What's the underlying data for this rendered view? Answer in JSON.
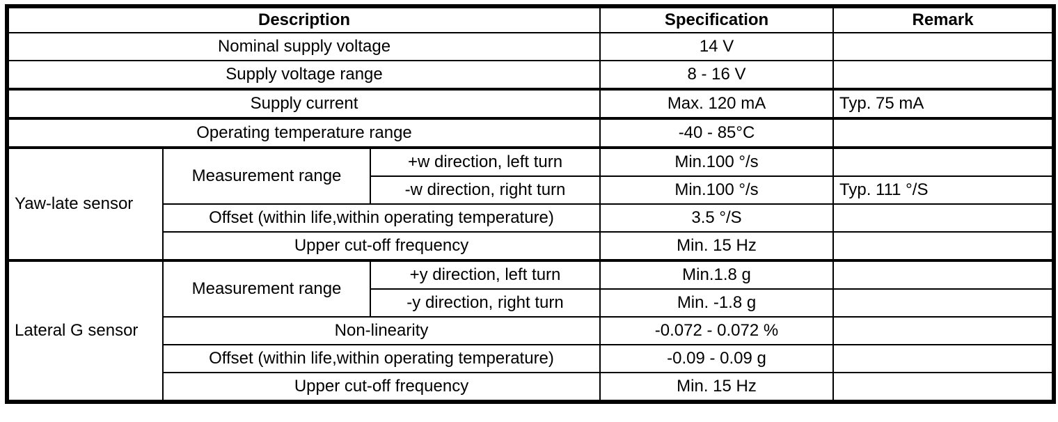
{
  "header": {
    "description": "Description",
    "specification": "Specification",
    "remark": "Remark"
  },
  "general_rows": [
    {
      "description": "Nominal supply voltage",
      "specification": "14 V",
      "remark": ""
    },
    {
      "description": "Supply voltage range",
      "specification": "8 - 16 V",
      "remark": ""
    },
    {
      "description": "Supply current",
      "specification": "Max. 120 mA",
      "remark": "Typ. 75 mA"
    },
    {
      "description": "Operating temperature range",
      "specification": "-40 - 85°C",
      "remark": ""
    }
  ],
  "yaw_sensor": {
    "name": "Yaw-late sensor",
    "measurement_range_label": "Measurement range",
    "rows": [
      {
        "description": "+w direction, left turn",
        "specification": "Min.100 °/s",
        "remark": ""
      },
      {
        "description": "-w direction, right turn",
        "specification": "Min.100 °/s",
        "remark": "Typ. 111 °/S"
      },
      {
        "description": "Offset (within life,within operating temperature)",
        "specification": "3.5 °/S",
        "remark": ""
      },
      {
        "description": "Upper cut-off frequency",
        "specification": "Min. 15 Hz",
        "remark": ""
      }
    ]
  },
  "lateral_sensor": {
    "name": "Lateral G sensor",
    "measurement_range_label": "Measurement range",
    "rows": [
      {
        "description": "+y direction, left turn",
        "specification": "Min.1.8 g",
        "remark": ""
      },
      {
        "description": "-y direction, right turn",
        "specification": "Min. -1.8 g",
        "remark": ""
      },
      {
        "description": "Non-linearity",
        "specification": "-0.072 - 0.072 %",
        "remark": ""
      },
      {
        "description": "Offset (within life,within operating temperature)",
        "specification": "-0.09 - 0.09 g",
        "remark": ""
      },
      {
        "description": "Upper cut-off frequency",
        "specification": "Min. 15 Hz",
        "remark": ""
      }
    ]
  },
  "colors": {
    "border": "#000000",
    "background": "#ffffff",
    "text": "#000000"
  }
}
